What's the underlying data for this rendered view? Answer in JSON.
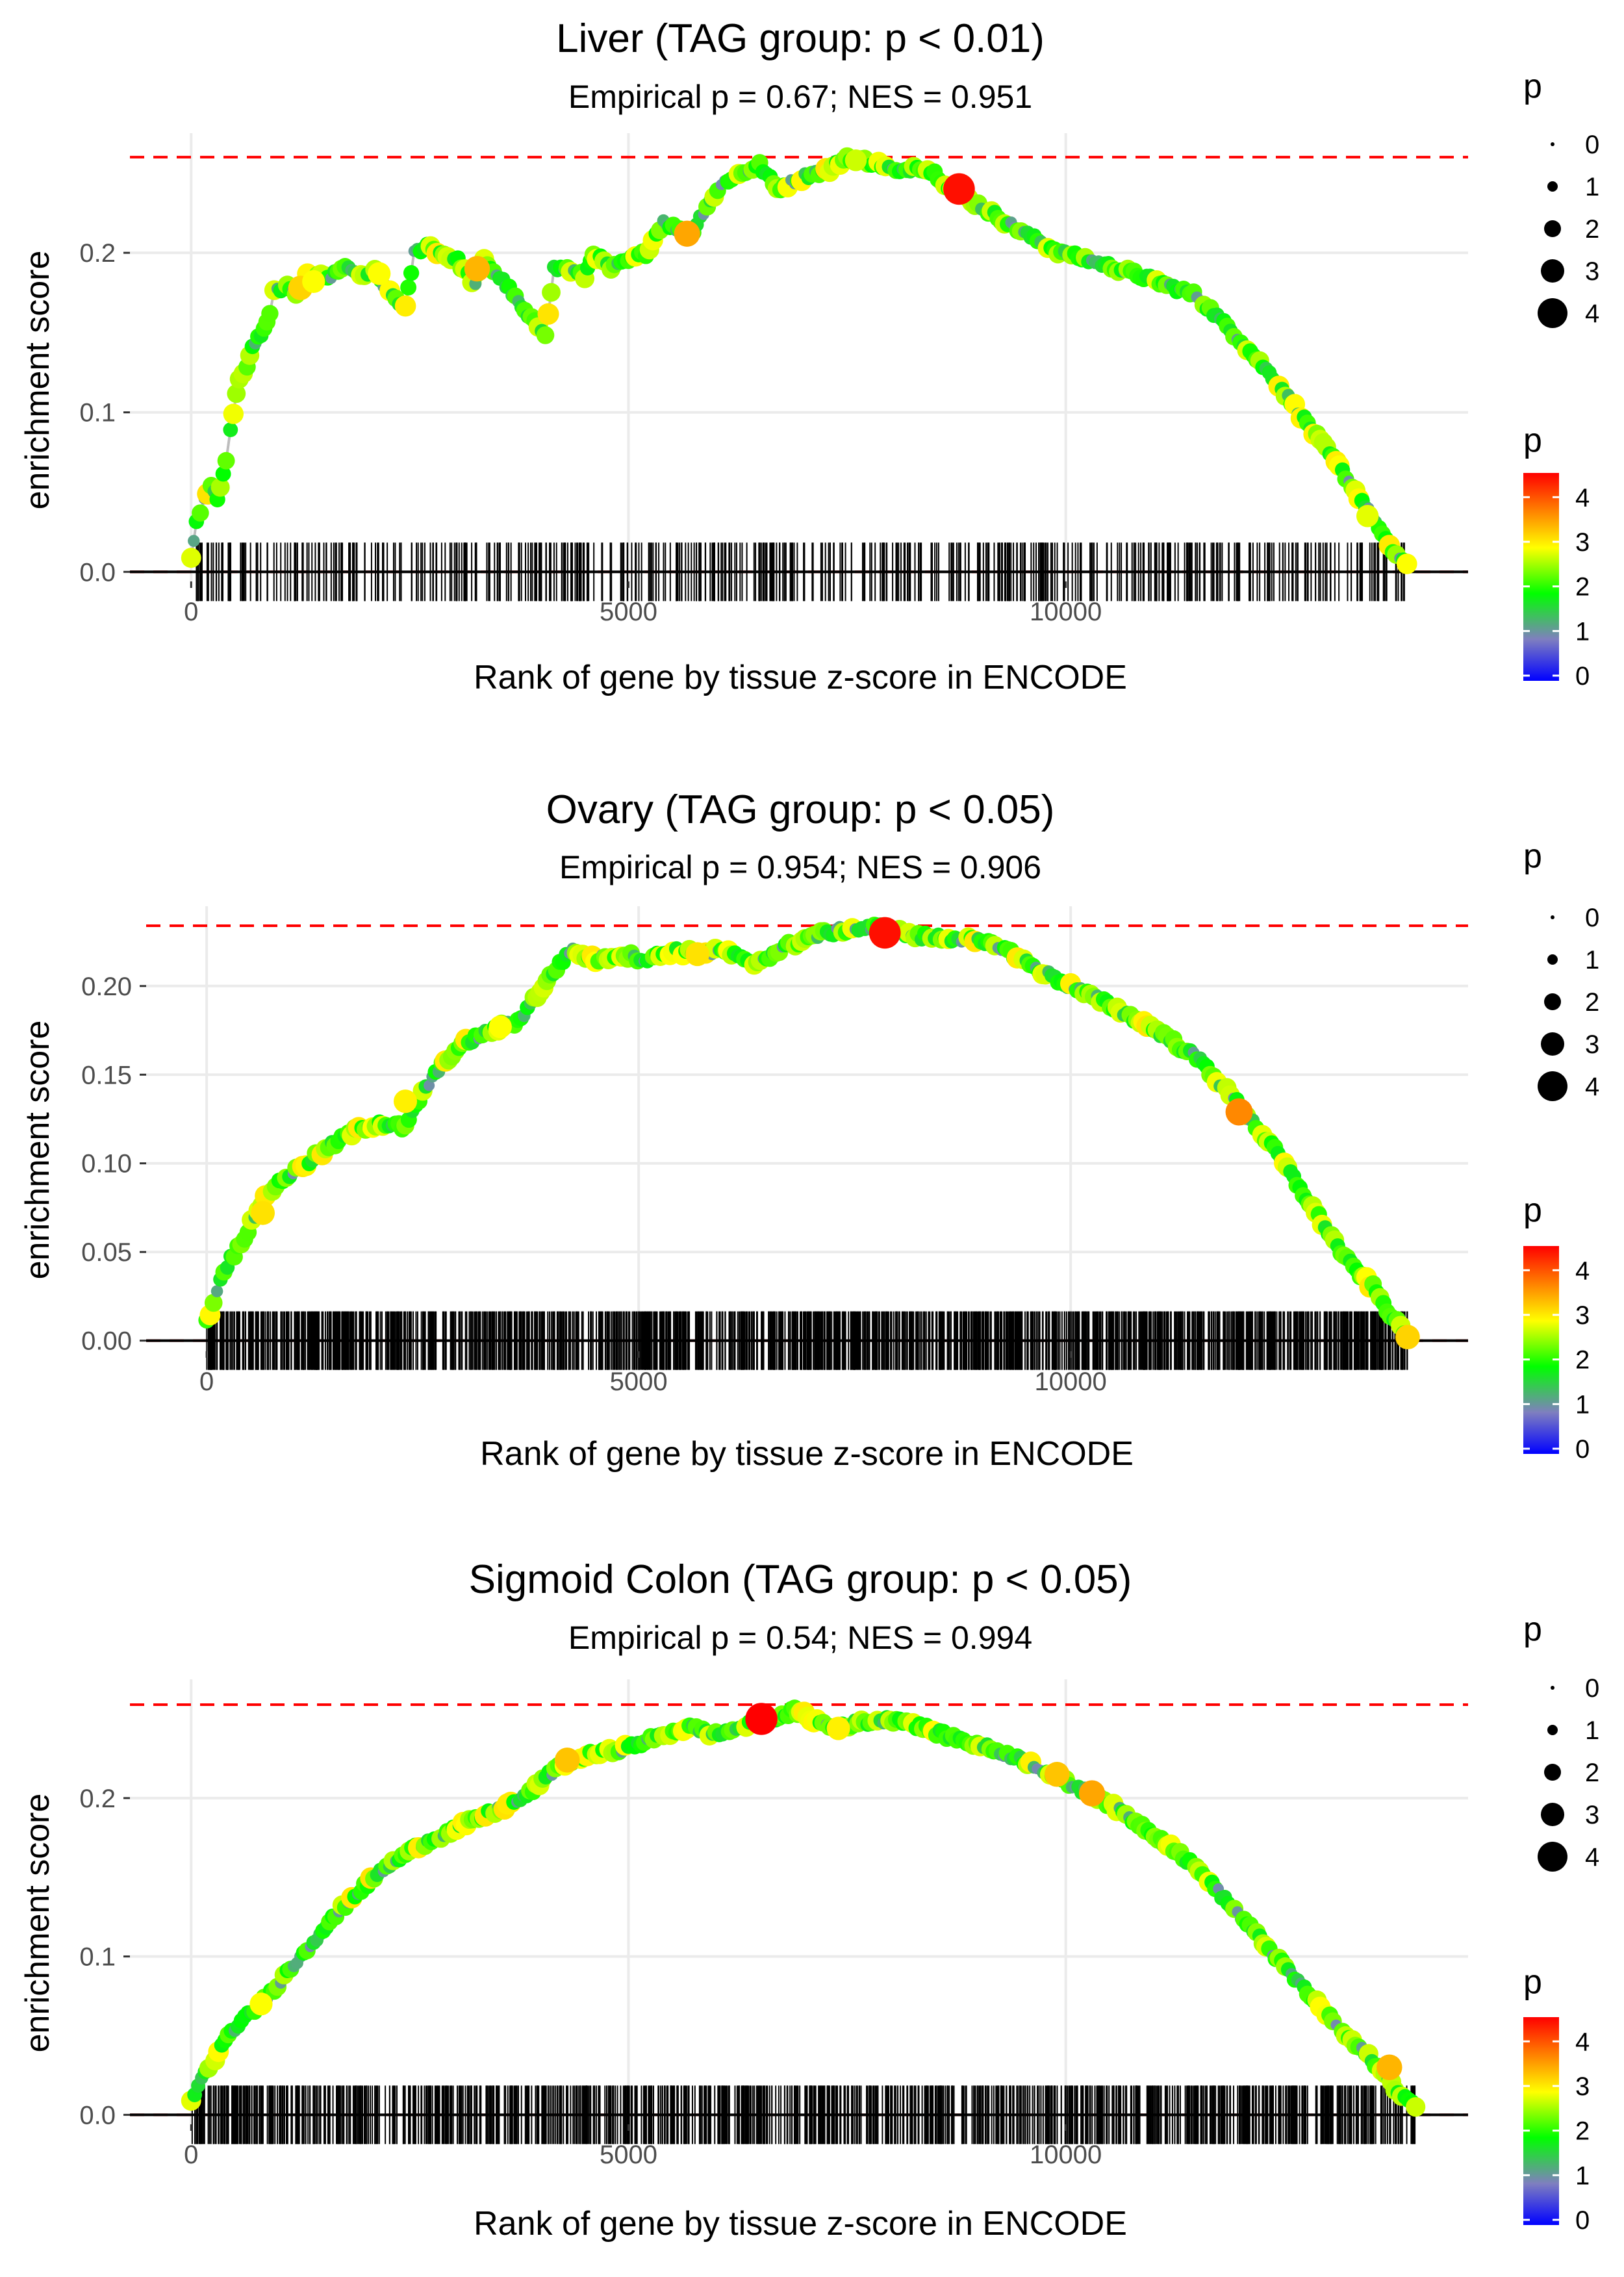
{
  "legend_labels": {
    "size_title": "p",
    "color_title": "p",
    "size_levels": [
      "0",
      "1",
      "2",
      "3",
      "4"
    ],
    "color_ticks": [
      "0",
      "1",
      "2",
      "3",
      "4"
    ]
  },
  "colors": {
    "line": "#bdbdbd",
    "reference": "#ff0000",
    "gradient": [
      "#0000ff",
      "#7f7fbf",
      "#00ff00",
      "#ffff00",
      "#ff8000",
      "#ff0000"
    ],
    "grid": "#ebebeb"
  },
  "chart_data": [
    {
      "type": "scatter",
      "title": "Liver (TAG group: p < 0.01)",
      "subtitle": "Empirical p = 0.67; NES = 0.951",
      "xlabel": "Rank of gene by tissue z-score in ENCODE",
      "ylabel": "enrichment score",
      "xlim": [
        -700,
        14600
      ],
      "ylim": [
        -0.006,
        0.275
      ],
      "xticks": [
        0,
        5000,
        10000
      ],
      "xtick_labels": [
        "0",
        "5000",
        "10000"
      ],
      "yticks": [
        0.0,
        0.1,
        0.2
      ],
      "ytick_labels": [
        "0.0",
        "0.1",
        "0.2"
      ],
      "max_es": 0.26,
      "n_genes": 13900,
      "curve": [
        [
          0,
          0.01
        ],
        [
          60,
          0.03
        ],
        [
          150,
          0.045
        ],
        [
          230,
          0.055
        ],
        [
          300,
          0.045
        ],
        [
          400,
          0.07
        ],
        [
          450,
          0.09
        ],
        [
          550,
          0.12
        ],
        [
          640,
          0.13
        ],
        [
          700,
          0.14
        ],
        [
          800,
          0.15
        ],
        [
          900,
          0.16
        ],
        [
          950,
          0.175
        ],
        [
          1100,
          0.18
        ],
        [
          1200,
          0.172
        ],
        [
          1330,
          0.185
        ],
        [
          1600,
          0.185
        ],
        [
          1800,
          0.192
        ],
        [
          1900,
          0.185
        ],
        [
          2100,
          0.188
        ],
        [
          2200,
          0.18
        ],
        [
          2450,
          0.165
        ],
        [
          2550,
          0.2
        ],
        [
          2700,
          0.205
        ],
        [
          2850,
          0.2
        ],
        [
          3050,
          0.195
        ],
        [
          3250,
          0.18
        ],
        [
          3350,
          0.195
        ],
        [
          3600,
          0.18
        ],
        [
          3850,
          0.16
        ],
        [
          4050,
          0.15
        ],
        [
          4150,
          0.19
        ],
        [
          4300,
          0.19
        ],
        [
          4500,
          0.185
        ],
        [
          4600,
          0.2
        ],
        [
          4800,
          0.19
        ],
        [
          5000,
          0.195
        ],
        [
          5200,
          0.2
        ],
        [
          5400,
          0.22
        ],
        [
          5700,
          0.21
        ],
        [
          5900,
          0.23
        ],
        [
          6100,
          0.245
        ],
        [
          6300,
          0.25
        ],
        [
          6500,
          0.255
        ],
        [
          6700,
          0.24
        ],
        [
          6900,
          0.245
        ],
        [
          7100,
          0.25
        ],
        [
          7300,
          0.252
        ],
        [
          7500,
          0.26
        ],
        [
          7700,
          0.258
        ],
        [
          7900,
          0.255
        ],
        [
          8100,
          0.25
        ],
        [
          8300,
          0.255
        ],
        [
          8500,
          0.25
        ],
        [
          8700,
          0.24
        ],
        [
          9000,
          0.23
        ],
        [
          9300,
          0.22
        ],
        [
          9600,
          0.21
        ],
        [
          9950,
          0.2
        ],
        [
          10300,
          0.195
        ],
        [
          10600,
          0.19
        ],
        [
          11000,
          0.183
        ],
        [
          11500,
          0.173
        ],
        [
          12000,
          0.145
        ],
        [
          12400,
          0.12
        ],
        [
          12800,
          0.09
        ],
        [
          13200,
          0.06
        ],
        [
          13500,
          0.035
        ],
        [
          13700,
          0.015
        ],
        [
          13900,
          0.005
        ]
      ],
      "highlights": [
        [
          1250,
          0.178,
          3.3
        ],
        [
          1400,
          0.182,
          3.0
        ],
        [
          2150,
          0.187,
          3.0
        ],
        [
          3270,
          0.19,
          3.5
        ],
        [
          5670,
          0.212,
          3.6
        ],
        [
          8780,
          0.24,
          4.6
        ],
        [
          7600,
          0.258,
          2.8
        ],
        [
          13450,
          0.035,
          2.9
        ]
      ],
      "rug_count": 560
    },
    {
      "type": "scatter",
      "title": "Ovary (TAG group: p < 0.05)",
      "subtitle": "Empirical p = 0.954; NES = 0.906",
      "xlabel": "Rank of gene by tissue z-score in ENCODE",
      "ylabel": "enrichment score",
      "xlim": [
        -700,
        14600
      ],
      "ylim": [
        -0.006,
        0.245
      ],
      "xticks": [
        0,
        5000,
        10000
      ],
      "xtick_labels": [
        "0",
        "5000",
        "10000"
      ],
      "yticks": [
        0.0,
        0.05,
        0.1,
        0.15,
        0.2
      ],
      "ytick_labels": [
        "0.00",
        "0.05",
        "0.10",
        "0.15",
        "0.20"
      ],
      "max_es": 0.234,
      "n_genes": 13900,
      "curve": [
        [
          0,
          0.01
        ],
        [
          200,
          0.04
        ],
        [
          400,
          0.055
        ],
        [
          600,
          0.075
        ],
        [
          800,
          0.088
        ],
        [
          1000,
          0.095
        ],
        [
          1300,
          0.105
        ],
        [
          1600,
          0.115
        ],
        [
          1800,
          0.12
        ],
        [
          2000,
          0.123
        ],
        [
          2300,
          0.12
        ],
        [
          2500,
          0.14
        ],
        [
          2800,
          0.16
        ],
        [
          3000,
          0.168
        ],
        [
          3300,
          0.175
        ],
        [
          3600,
          0.18
        ],
        [
          3900,
          0.2
        ],
        [
          4200,
          0.22
        ],
        [
          4500,
          0.215
        ],
        [
          4800,
          0.218
        ],
        [
          5100,
          0.215
        ],
        [
          5400,
          0.22
        ],
        [
          5700,
          0.218
        ],
        [
          6000,
          0.22
        ],
        [
          6300,
          0.212
        ],
        [
          6700,
          0.222
        ],
        [
          7000,
          0.228
        ],
        [
          7400,
          0.232
        ],
        [
          7800,
          0.233
        ],
        [
          8200,
          0.228
        ],
        [
          8700,
          0.227
        ],
        [
          9200,
          0.222
        ],
        [
          9600,
          0.21
        ],
        [
          10000,
          0.2
        ],
        [
          10500,
          0.188
        ],
        [
          11000,
          0.175
        ],
        [
          11500,
          0.158
        ],
        [
          12000,
          0.13
        ],
        [
          12400,
          0.105
        ],
        [
          12800,
          0.075
        ],
        [
          13200,
          0.045
        ],
        [
          13500,
          0.03
        ],
        [
          13700,
          0.015
        ],
        [
          13900,
          0.002
        ]
      ],
      "highlights": [
        [
          650,
          0.072,
          3.2
        ],
        [
          2300,
          0.135,
          3.1
        ],
        [
          3400,
          0.177,
          3.0
        ],
        [
          5680,
          0.218,
          3.2
        ],
        [
          7850,
          0.23,
          4.6
        ],
        [
          11950,
          0.129,
          3.8
        ],
        [
          13900,
          0.002,
          3.3
        ]
      ],
      "rug_count": 1400
    },
    {
      "type": "scatter",
      "title": "Sigmoid Colon (TAG group: p < 0.05)",
      "subtitle": "Empirical p = 0.54; NES = 0.994",
      "xlabel": "Rank of gene by tissue z-score in ENCODE",
      "ylabel": "enrichment score",
      "xlim": [
        -700,
        14600
      ],
      "ylim": [
        -0.006,
        0.275
      ],
      "xticks": [
        0,
        5000,
        10000
      ],
      "xtick_labels": [
        "0",
        "5000",
        "10000"
      ],
      "yticks": [
        0.0,
        0.1,
        0.2
      ],
      "ytick_labels": [
        "0.0",
        "0.1",
        "0.2"
      ],
      "max_es": 0.259,
      "n_genes": 14000,
      "curve": [
        [
          0,
          0.01
        ],
        [
          200,
          0.03
        ],
        [
          500,
          0.055
        ],
        [
          800,
          0.07
        ],
        [
          1100,
          0.09
        ],
        [
          1400,
          0.11
        ],
        [
          1800,
          0.135
        ],
        [
          2200,
          0.155
        ],
        [
          2600,
          0.17
        ],
        [
          3000,
          0.18
        ],
        [
          3400,
          0.19
        ],
        [
          3800,
          0.2
        ],
        [
          4200,
          0.22
        ],
        [
          4600,
          0.228
        ],
        [
          5000,
          0.232
        ],
        [
          5400,
          0.24
        ],
        [
          5700,
          0.245
        ],
        [
          6000,
          0.24
        ],
        [
          6500,
          0.248
        ],
        [
          6900,
          0.255
        ],
        [
          7300,
          0.245
        ],
        [
          7700,
          0.248
        ],
        [
          8100,
          0.25
        ],
        [
          8600,
          0.24
        ],
        [
          9100,
          0.232
        ],
        [
          9600,
          0.222
        ],
        [
          10000,
          0.21
        ],
        [
          10400,
          0.2
        ],
        [
          10800,
          0.185
        ],
        [
          11200,
          0.17
        ],
        [
          11600,
          0.15
        ],
        [
          12000,
          0.125
        ],
        [
          12400,
          0.1
        ],
        [
          12800,
          0.075
        ],
        [
          13200,
          0.05
        ],
        [
          13500,
          0.035
        ],
        [
          13800,
          0.015
        ],
        [
          14000,
          0.005
        ]
      ],
      "highlights": [
        [
          800,
          0.07,
          3.0
        ],
        [
          4300,
          0.224,
          3.4
        ],
        [
          6520,
          0.25,
          4.7
        ],
        [
          7400,
          0.244,
          3.1
        ],
        [
          9900,
          0.215,
          3.4
        ],
        [
          10300,
          0.203,
          3.6
        ],
        [
          13700,
          0.03,
          3.5
        ]
      ],
      "rug_count": 1100
    }
  ]
}
